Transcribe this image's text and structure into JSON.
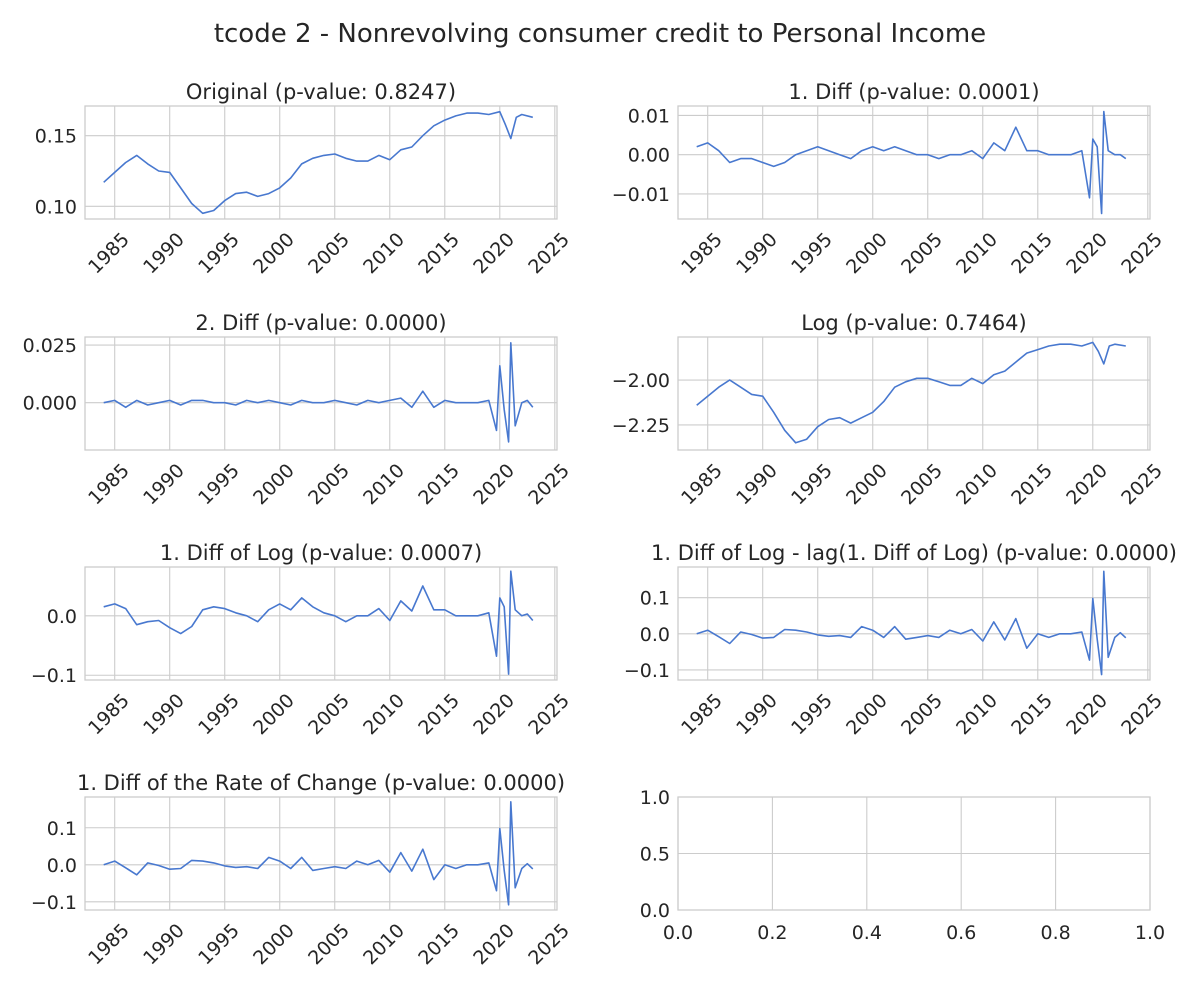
{
  "figure_title": "tcode 2 - Nonrevolving consumer credit to Personal Income",
  "line_color": "#4878cf",
  "chart_data": [
    {
      "type": "line",
      "title": "Original (p-value: 0.8247)",
      "x_ticks": [
        "1985",
        "1990",
        "1995",
        "2000",
        "2005",
        "2010",
        "2015",
        "2020",
        "2025"
      ],
      "y_ticks": [
        "0.10",
        "0.15"
      ],
      "xlim": [
        1982.3,
        2025.2
      ],
      "ylim": [
        0.091,
        0.171
      ],
      "x": [
        1984,
        1985,
        1986,
        1987,
        1988,
        1989,
        1990,
        1991,
        1992,
        1993,
        1994,
        1995,
        1996,
        1997,
        1998,
        1999,
        2000,
        2001,
        2002,
        2003,
        2004,
        2005,
        2006,
        2007,
        2008,
        2009,
        2010,
        2011,
        2012,
        2013,
        2014,
        2015,
        2016,
        2017,
        2018,
        2019,
        2020,
        2020.5,
        2021,
        2021.5,
        2022,
        2023
      ],
      "y": [
        0.117,
        0.124,
        0.131,
        0.136,
        0.13,
        0.125,
        0.124,
        0.113,
        0.102,
        0.095,
        0.097,
        0.104,
        0.109,
        0.11,
        0.107,
        0.109,
        0.113,
        0.12,
        0.13,
        0.134,
        0.136,
        0.137,
        0.134,
        0.132,
        0.132,
        0.136,
        0.133,
        0.14,
        0.142,
        0.15,
        0.157,
        0.161,
        0.164,
        0.166,
        0.166,
        0.165,
        0.167,
        0.158,
        0.148,
        0.163,
        0.165,
        0.163
      ]
    },
    {
      "type": "line",
      "title": "1. Diff (p-value: 0.0001)",
      "x_ticks": [
        "1985",
        "1990",
        "1995",
        "2000",
        "2005",
        "2010",
        "2015",
        "2020",
        "2025"
      ],
      "y_ticks": [
        "−0.01",
        "0.00",
        "0.01"
      ],
      "xlim": [
        1982.3,
        2025.2
      ],
      "ylim": [
        -0.0164,
        0.0124
      ],
      "x": [
        1984,
        1985,
        1986,
        1987,
        1988,
        1989,
        1990,
        1991,
        1992,
        1993,
        1994,
        1995,
        1996,
        1997,
        1998,
        1999,
        2000,
        2001,
        2002,
        2003,
        2004,
        2005,
        2006,
        2007,
        2008,
        2009,
        2010,
        2011,
        2012,
        2013,
        2014,
        2015,
        2016,
        2017,
        2018,
        2019,
        2019.7,
        2020,
        2020.4,
        2020.8,
        2021,
        2021.4,
        2022,
        2022.5,
        2023
      ],
      "y": [
        0.002,
        0.003,
        0.001,
        -0.002,
        -0.001,
        -0.001,
        -0.002,
        -0.003,
        -0.002,
        0.0,
        0.001,
        0.002,
        0.001,
        0.0,
        -0.001,
        0.001,
        0.002,
        0.001,
        0.002,
        0.001,
        0.0,
        0.0,
        -0.001,
        0.0,
        0.0,
        0.001,
        -0.001,
        0.003,
        0.001,
        0.007,
        0.001,
        0.001,
        0.0,
        0.0,
        0.0,
        0.001,
        -0.011,
        0.004,
        0.002,
        -0.015,
        0.011,
        0.001,
        0.0,
        0.0,
        -0.001
      ]
    },
    {
      "type": "line",
      "title": "2. Diff (p-value: 0.0000)",
      "x_ticks": [
        "1985",
        "1990",
        "1995",
        "2000",
        "2005",
        "2010",
        "2015",
        "2020",
        "2025"
      ],
      "y_ticks": [
        "0.000",
        "0.025"
      ],
      "xlim": [
        1982.3,
        2025.2
      ],
      "ylim": [
        -0.0205,
        0.0285
      ],
      "x": [
        1984,
        1985,
        1986,
        1987,
        1988,
        1989,
        1990,
        1991,
        1992,
        1993,
        1994,
        1995,
        1996,
        1997,
        1998,
        1999,
        2000,
        2001,
        2002,
        2003,
        2004,
        2005,
        2006,
        2007,
        2008,
        2009,
        2010,
        2011,
        2012,
        2013,
        2014,
        2015,
        2016,
        2017,
        2018,
        2019,
        2019.7,
        2020,
        2020.4,
        2020.8,
        2021,
        2021.4,
        2022,
        2022.5,
        2023
      ],
      "y": [
        0.0,
        0.001,
        -0.002,
        0.001,
        -0.001,
        0.0,
        0.001,
        -0.001,
        0.001,
        0.001,
        0.0,
        0.0,
        -0.001,
        0.001,
        0.0,
        0.001,
        0.0,
        -0.001,
        0.001,
        0.0,
        0.0,
        0.001,
        0.0,
        -0.001,
        0.001,
        0.0,
        0.001,
        0.002,
        -0.002,
        0.005,
        -0.002,
        0.001,
        0.0,
        0.0,
        0.0,
        0.001,
        -0.012,
        0.016,
        -0.003,
        -0.017,
        0.026,
        -0.01,
        0.0,
        0.001,
        -0.002
      ]
    },
    {
      "type": "line",
      "title": "Log (p-value: 0.7464)",
      "x_ticks": [
        "1985",
        "1990",
        "1995",
        "2000",
        "2005",
        "2010",
        "2015",
        "2020",
        "2025"
      ],
      "y_ticks": [
        "−2.25",
        "−2.00"
      ],
      "xlim": [
        1982.3,
        2025.2
      ],
      "ylim": [
        -2.39,
        -1.76
      ],
      "x": [
        1984,
        1985,
        1986,
        1987,
        1988,
        1989,
        1990,
        1991,
        1992,
        1993,
        1994,
        1995,
        1996,
        1997,
        1998,
        1999,
        2000,
        2001,
        2002,
        2003,
        2004,
        2005,
        2006,
        2007,
        2008,
        2009,
        2010,
        2011,
        2012,
        2013,
        2014,
        2015,
        2016,
        2017,
        2018,
        2019,
        2020,
        2020.5,
        2021,
        2021.5,
        2022,
        2023
      ],
      "y": [
        -2.14,
        -2.09,
        -2.04,
        -2.0,
        -2.04,
        -2.08,
        -2.09,
        -2.18,
        -2.28,
        -2.35,
        -2.33,
        -2.26,
        -2.22,
        -2.21,
        -2.24,
        -2.21,
        -2.18,
        -2.12,
        -2.04,
        -2.01,
        -1.99,
        -1.99,
        -2.01,
        -2.03,
        -2.03,
        -1.99,
        -2.02,
        -1.97,
        -1.95,
        -1.9,
        -1.85,
        -1.83,
        -1.81,
        -1.8,
        -1.8,
        -1.81,
        -1.79,
        -1.84,
        -1.91,
        -1.81,
        -1.8,
        -1.81
      ]
    },
    {
      "type": "line",
      "title": "1. Diff of Log (p-value: 0.0007)",
      "x_ticks": [
        "1985",
        "1990",
        "1995",
        "2000",
        "2005",
        "2010",
        "2015",
        "2020",
        "2025"
      ],
      "y_ticks": [
        "−0.1",
        "0.0"
      ],
      "xlim": [
        1982.3,
        2025.2
      ],
      "ylim": [
        -0.108,
        0.082
      ],
      "x": [
        1984,
        1985,
        1986,
        1987,
        1988,
        1989,
        1990,
        1991,
        1992,
        1993,
        1994,
        1995,
        1996,
        1997,
        1998,
        1999,
        2000,
        2001,
        2002,
        2003,
        2004,
        2005,
        2006,
        2007,
        2008,
        2009,
        2010,
        2011,
        2012,
        2013,
        2014,
        2015,
        2016,
        2017,
        2018,
        2019,
        2019.7,
        2020,
        2020.4,
        2020.8,
        2021,
        2021.4,
        2022,
        2022.5,
        2023
      ],
      "y": [
        0.015,
        0.02,
        0.012,
        -0.015,
        -0.01,
        -0.008,
        -0.02,
        -0.03,
        -0.018,
        0.01,
        0.015,
        0.012,
        0.005,
        0.0,
        -0.01,
        0.01,
        0.02,
        0.01,
        0.03,
        0.015,
        0.005,
        0.0,
        -0.01,
        0.0,
        0.0,
        0.012,
        -0.008,
        0.025,
        0.008,
        0.05,
        0.01,
        0.01,
        0.0,
        0.0,
        0.0,
        0.005,
        -0.068,
        0.03,
        0.015,
        -0.098,
        0.075,
        0.01,
        0.0,
        0.003,
        -0.008
      ]
    },
    {
      "type": "line",
      "title": "1. Diff of Log - lag(1. Diff of Log) (p-value: 0.0000)",
      "x_ticks": [
        "1985",
        "1990",
        "1995",
        "2000",
        "2005",
        "2010",
        "2015",
        "2020",
        "2025"
      ],
      "y_ticks": [
        "−0.1",
        "0.0",
        "0.1"
      ],
      "xlim": [
        1982.3,
        2025.2
      ],
      "ylim": [
        -0.128,
        0.185
      ],
      "x": [
        1984,
        1985,
        1986,
        1987,
        1988,
        1989,
        1990,
        1991,
        1992,
        1993,
        1994,
        1995,
        1996,
        1997,
        1998,
        1999,
        2000,
        2001,
        2002,
        2003,
        2004,
        2005,
        2006,
        2007,
        2008,
        2009,
        2010,
        2011,
        2012,
        2013,
        2014,
        2015,
        2016,
        2017,
        2018,
        2019,
        2019.7,
        2020,
        2020.4,
        2020.8,
        2021,
        2021.4,
        2022,
        2022.5,
        2023
      ],
      "y": [
        0.0,
        0.01,
        -0.008,
        -0.027,
        0.005,
        -0.002,
        -0.012,
        -0.01,
        0.012,
        0.01,
        0.005,
        -0.003,
        -0.007,
        -0.005,
        -0.01,
        0.02,
        0.01,
        -0.01,
        0.02,
        -0.015,
        -0.01,
        -0.005,
        -0.01,
        0.01,
        0.0,
        0.012,
        -0.02,
        0.033,
        -0.017,
        0.042,
        -0.04,
        0.0,
        -0.01,
        0.0,
        0.0,
        0.005,
        -0.073,
        0.098,
        -0.015,
        -0.113,
        0.173,
        -0.065,
        -0.01,
        0.003,
        -0.011
      ]
    },
    {
      "type": "line",
      "title": "1. Diff of the Rate of Change (p-value: 0.0000)",
      "x_ticks": [
        "1985",
        "1990",
        "1995",
        "2000",
        "2005",
        "2010",
        "2015",
        "2020",
        "2025"
      ],
      "y_ticks": [
        "−0.1",
        "0.0",
        "0.1"
      ],
      "xlim": [
        1982.3,
        2025.2
      ],
      "ylim": [
        -0.122,
        0.183
      ],
      "x": [
        1984,
        1985,
        1986,
        1987,
        1988,
        1989,
        1990,
        1991,
        1992,
        1993,
        1994,
        1995,
        1996,
        1997,
        1998,
        1999,
        2000,
        2001,
        2002,
        2003,
        2004,
        2005,
        2006,
        2007,
        2008,
        2009,
        2010,
        2011,
        2012,
        2013,
        2014,
        2015,
        2016,
        2017,
        2018,
        2019,
        2019.7,
        2020,
        2020.4,
        2020.8,
        2021,
        2021.4,
        2022,
        2022.5,
        2023
      ],
      "y": [
        0.0,
        0.01,
        -0.008,
        -0.027,
        0.005,
        -0.002,
        -0.012,
        -0.01,
        0.012,
        0.01,
        0.005,
        -0.003,
        -0.007,
        -0.005,
        -0.01,
        0.02,
        0.01,
        -0.01,
        0.02,
        -0.015,
        -0.01,
        -0.005,
        -0.01,
        0.01,
        0.0,
        0.012,
        -0.02,
        0.033,
        -0.017,
        0.042,
        -0.04,
        0.0,
        -0.01,
        0.0,
        0.0,
        0.005,
        -0.07,
        0.098,
        -0.015,
        -0.108,
        0.17,
        -0.062,
        -0.01,
        0.003,
        -0.011
      ]
    },
    {
      "type": "line",
      "title": "",
      "x_ticks": [
        "0.0",
        "0.2",
        "0.4",
        "0.6",
        "0.8",
        "1.0"
      ],
      "y_ticks": [
        "0.0",
        "0.5",
        "1.0"
      ],
      "xlim": [
        0,
        1
      ],
      "ylim": [
        0,
        1
      ],
      "x": [],
      "y": []
    }
  ]
}
